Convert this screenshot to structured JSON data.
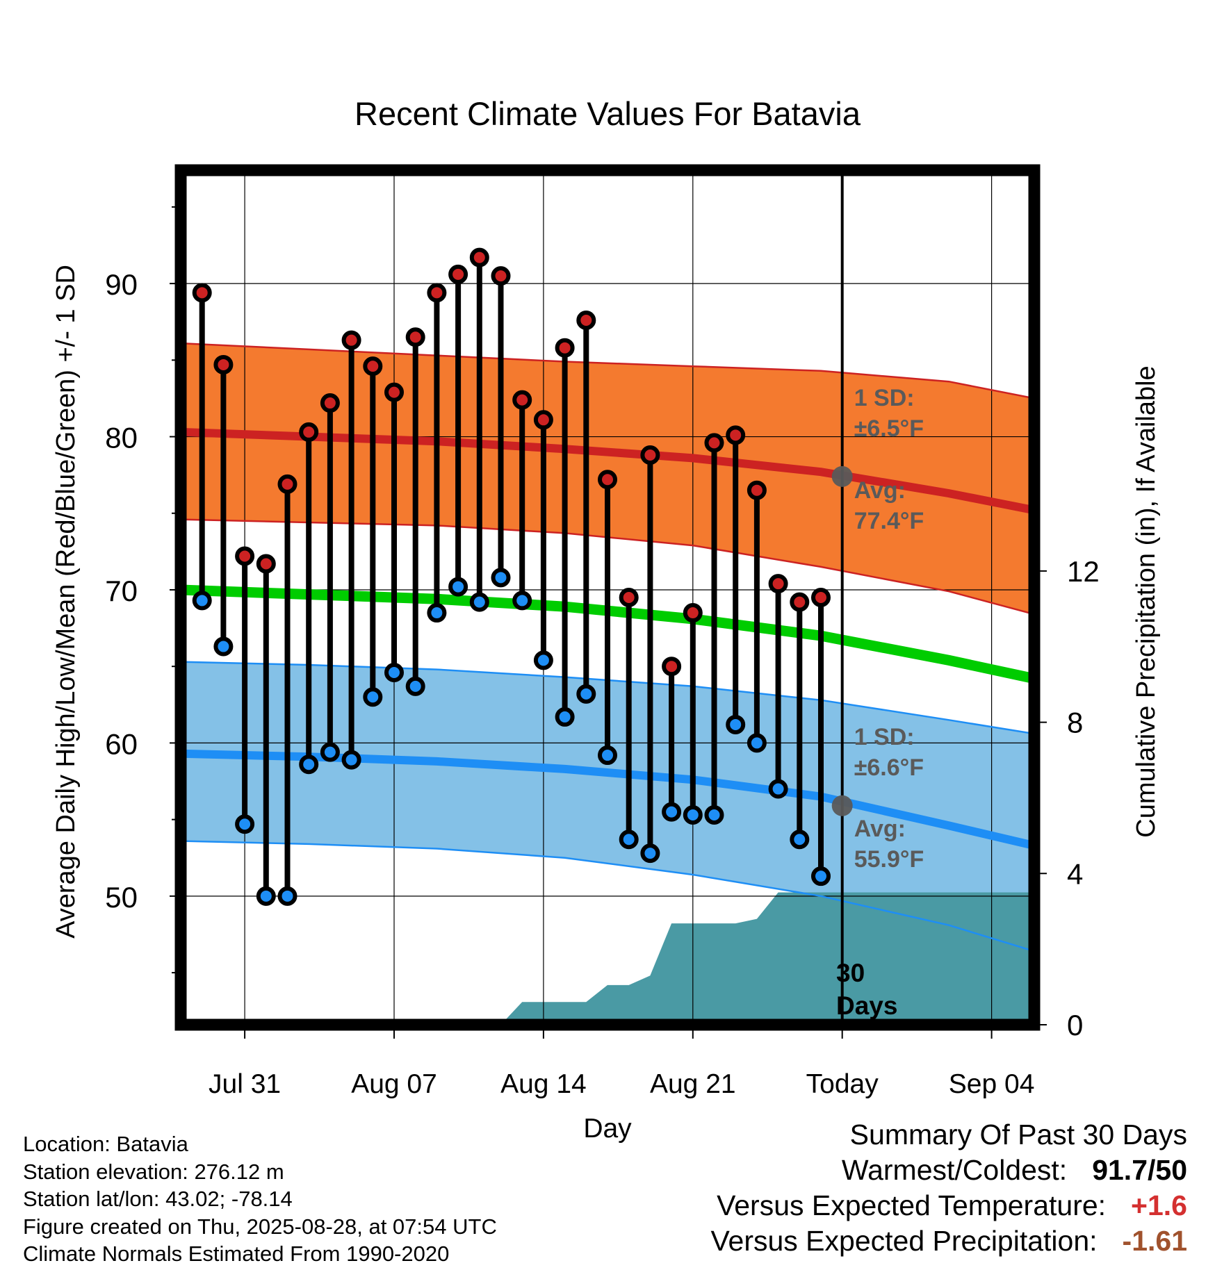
{
  "chart_data": {
    "type": "line",
    "title": "Recent Climate Values For Batavia",
    "xlabel": "Day",
    "ylabel": "Average Daily High/Low/Mean (Red/Blue/Green) +/- 1 SD",
    "y2label": "Cumulative Precipitation (in), If Available",
    "ylim": [
      41.6,
      97.4
    ],
    "y2lim": [
      0,
      22.6
    ],
    "yticks": [
      50,
      60,
      70,
      80,
      90
    ],
    "y2ticks": [
      0,
      4,
      8,
      12
    ],
    "xlim": [
      "2025-07-28",
      "2025-09-06"
    ],
    "xtick_labels": [
      "Jul 31",
      "Aug 07",
      "Aug 14",
      "Aug 21",
      "Today",
      "Sep 04"
    ],
    "xtick_dates": [
      "2025-07-31",
      "2025-08-07",
      "2025-08-14",
      "2025-08-21",
      "2025-08-28",
      "2025-09-04"
    ],
    "today": "2025-08-28",
    "observed": {
      "dates": [
        "2025-07-29",
        "2025-07-30",
        "2025-07-31",
        "2025-08-01",
        "2025-08-02",
        "2025-08-03",
        "2025-08-04",
        "2025-08-05",
        "2025-08-06",
        "2025-08-07",
        "2025-08-08",
        "2025-08-09",
        "2025-08-10",
        "2025-08-11",
        "2025-08-12",
        "2025-08-13",
        "2025-08-14",
        "2025-08-15",
        "2025-08-16",
        "2025-08-17",
        "2025-08-18",
        "2025-08-19",
        "2025-08-20",
        "2025-08-21",
        "2025-08-22",
        "2025-08-23",
        "2025-08-24",
        "2025-08-25",
        "2025-08-26",
        "2025-08-27"
      ],
      "highs": [
        89.4,
        84.7,
        72.2,
        71.7,
        76.9,
        80.3,
        82.2,
        86.3,
        84.6,
        82.9,
        86.5,
        89.4,
        90.6,
        91.7,
        90.5,
        82.4,
        81.1,
        85.8,
        87.6,
        77.2,
        69.5,
        78.8,
        65.0,
        68.5,
        79.6,
        80.1,
        76.5,
        70.4,
        69.2,
        69.5
      ],
      "lows": [
        69.3,
        66.3,
        54.7,
        50.0,
        50.0,
        58.6,
        59.4,
        58.9,
        63.0,
        64.6,
        63.7,
        68.5,
        70.2,
        69.2,
        70.8,
        69.3,
        65.4,
        61.7,
        63.2,
        59.2,
        53.7,
        52.8,
        55.5,
        55.3,
        55.3,
        61.2,
        60.0,
        57.0,
        53.7,
        51.3
      ]
    },
    "normals": {
      "dates": [
        "2025-07-28",
        "2025-08-03",
        "2025-08-09",
        "2025-08-15",
        "2025-08-21",
        "2025-08-27",
        "2025-09-02",
        "2025-09-06"
      ],
      "high_mean": [
        80.3,
        80.0,
        79.7,
        79.2,
        78.6,
        77.7,
        76.3,
        75.2
      ],
      "high_upper": [
        86.1,
        85.7,
        85.3,
        84.9,
        84.6,
        84.3,
        83.6,
        82.5
      ],
      "high_lower": [
        74.6,
        74.4,
        74.2,
        73.7,
        72.9,
        71.5,
        69.9,
        68.4
      ],
      "mean": [
        70.0,
        69.7,
        69.4,
        68.9,
        68.1,
        67.0,
        65.4,
        64.2
      ],
      "low_mean": [
        59.3,
        59.1,
        58.8,
        58.3,
        57.6,
        56.5,
        54.6,
        53.3
      ],
      "low_upper": [
        65.3,
        65.1,
        64.8,
        64.3,
        63.7,
        62.8,
        61.5,
        60.6
      ],
      "low_lower": [
        53.6,
        53.4,
        53.1,
        52.5,
        51.4,
        50.0,
        48.1,
        46.4
      ]
    },
    "precipitation": {
      "dates": [
        "2025-08-12",
        "2025-08-13",
        "2025-08-16",
        "2025-08-17",
        "2025-08-18",
        "2025-08-19",
        "2025-08-20",
        "2025-08-23",
        "2025-08-24",
        "2025-08-25",
        "2025-09-06"
      ],
      "values": [
        0.0,
        0.6,
        0.6,
        1.05,
        1.05,
        1.3,
        2.68,
        2.68,
        2.8,
        3.5,
        3.5
      ]
    },
    "annotations": {
      "high_sd": "1 SD:",
      "high_sd_val": "±6.5°F",
      "high_avg": "Avg:",
      "high_avg_val": "77.4°F",
      "low_sd": "1 SD:",
      "low_sd_val": "±6.6°F",
      "low_avg": "Avg:",
      "low_avg_val": "55.9°F",
      "today_high_avg": 77.4,
      "today_low_avg": 55.9,
      "days_line1": "30",
      "days_line2": "Days"
    },
    "colors": {
      "high": "#cc2222",
      "high_band": "#f47a2f",
      "low": "#1e8ef5",
      "low_band": "#84c1e7",
      "mean": "#00cc00",
      "precip": "#4a9aa4",
      "annotation": "#5a5a5a"
    }
  },
  "info": {
    "location": "Location: Batavia",
    "elevation": "Station elevation: 276.12 m",
    "latlon": "Station lat/lon: 43.02; -78.14",
    "created": "Figure created on Thu, 2025-08-28, at 07:54 UTC",
    "normals": "Climate Normals Estimated From 1990-2020"
  },
  "summary": {
    "title": "Summary Of Past 30 Days",
    "warmest_label": "Warmest/Coldest:",
    "warmest_value": "91.7/50",
    "temp_label": "Versus Expected Temperature:",
    "temp_value": "+1.6",
    "temp_color": "#d43030",
    "precip_label": "Versus Expected Precipitation:",
    "precip_value": "-1.61",
    "precip_color": "#a0522d"
  }
}
